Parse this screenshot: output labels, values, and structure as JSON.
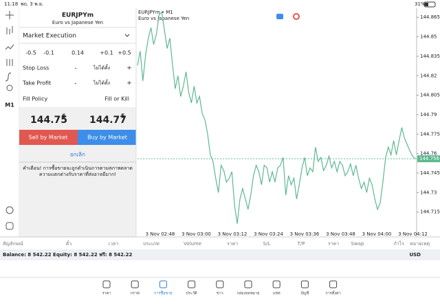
{
  "status": {
    "time": "11:18",
    "date": "พฤ. 3 พ.ย.",
    "battery": "31%"
  },
  "side": {
    "timeframe": "M1"
  },
  "order": {
    "symbol": "EURJPYm",
    "description": "Euro vs Japanese Yen",
    "execution": "Market Execution",
    "volume_steps": [
      "-0.5",
      "-0.1",
      "+0.1",
      "+0.5"
    ],
    "volume": "0.14",
    "stop_loss": {
      "label": "Stop Loss",
      "minus": "-",
      "value": "ไม่ได้ตั้ง",
      "plus": "+"
    },
    "take_profit": {
      "label": "Take Profit",
      "minus": "-",
      "value": "ไม่ได้ตั้ง",
      "plus": "+"
    },
    "fill_policy": {
      "label": "Fill Policy",
      "value": "Fill or Kill"
    },
    "bid": {
      "main": "144.75",
      "last": "6"
    },
    "ask": {
      "main": "144.77",
      "last": "5"
    },
    "sell": "Sell by Market",
    "buy": "Buy by Market",
    "cancel": "ยกเลิก",
    "warning": [
      "คำเตือน! การซื้อขายจะถูกดำเนินการตามสภาพตลาด",
      "ความแตกต่างกับราคาที่ส่งอาจมีมาก!"
    ]
  },
  "chart": {
    "type": "line",
    "title": "EURJPYm • M1",
    "subtitle": "Euro vs Japanese Yen",
    "color": "#5cb88f",
    "ylim": [
      144.7,
      144.872
    ],
    "yticks": [
      144.865,
      144.85,
      144.835,
      144.82,
      144.805,
      144.79,
      144.775,
      144.76,
      144.745,
      144.73,
      144.715
    ],
    "xtick_labels": [
      "3 Nov 02:48",
      "3 Nov 03:00",
      "3 Nov 03:12",
      "3 Nov 03:24",
      "3 Nov 03:36",
      "3 Nov 03:48",
      "3 Nov 04:00",
      "3 Nov 04:12"
    ],
    "current": 144.756,
    "values": [
      144.828,
      144.839,
      144.816,
      144.836,
      144.849,
      144.857,
      144.844,
      144.852,
      144.867,
      144.869,
      144.855,
      144.841,
      144.849,
      144.828,
      144.81,
      144.82,
      144.804,
      144.812,
      144.823,
      144.807,
      144.799,
      144.812,
      144.799,
      144.804,
      144.791,
      144.786,
      144.775,
      144.759,
      144.754,
      144.741,
      144.73,
      144.751,
      144.747,
      144.738,
      144.741,
      144.746,
      144.72,
      144.706,
      144.725,
      144.733,
      144.725,
      144.717,
      144.728,
      144.743,
      144.751,
      144.746,
      144.736,
      144.751,
      144.749,
      144.738,
      144.746,
      144.738,
      144.749,
      144.751,
      144.757,
      144.728,
      144.743,
      144.736,
      144.741,
      144.725,
      144.736,
      144.749,
      144.757,
      144.743,
      144.749,
      144.746,
      144.765,
      144.754,
      144.757,
      144.747,
      144.751,
      144.758,
      144.749,
      144.754,
      144.746,
      144.754,
      144.751,
      144.743,
      144.746,
      144.752,
      144.743,
      144.751,
      144.741,
      144.733,
      144.738,
      144.73,
      144.741,
      144.736,
      144.725,
      144.717,
      144.722,
      144.738,
      144.757,
      144.765,
      144.759,
      144.77,
      144.759,
      144.77,
      144.78,
      144.772,
      144.767,
      144.762,
      144.758,
      144.756
    ]
  },
  "table_header": [
    "สัญลักษณ์",
    "ตั๋ว",
    "เวลา",
    "ประเภท",
    "Volume",
    "ราคา",
    "S/L",
    "T/P",
    "ราคา",
    "Swap",
    "กำไร",
    "หมายเหตุ"
  ],
  "balance": {
    "text": "Balance: 8 542.22 Equity: 8 542.22 ฟรี: 8 542.22",
    "currency": "USD"
  },
  "nav": [
    "ราคา",
    "กราฟ",
    "การซื้อขาย",
    "ประวัติ",
    "ข่าว",
    "กล่องจดหมาย",
    "แชท",
    "บัญชี",
    "การตั้งค่า"
  ]
}
